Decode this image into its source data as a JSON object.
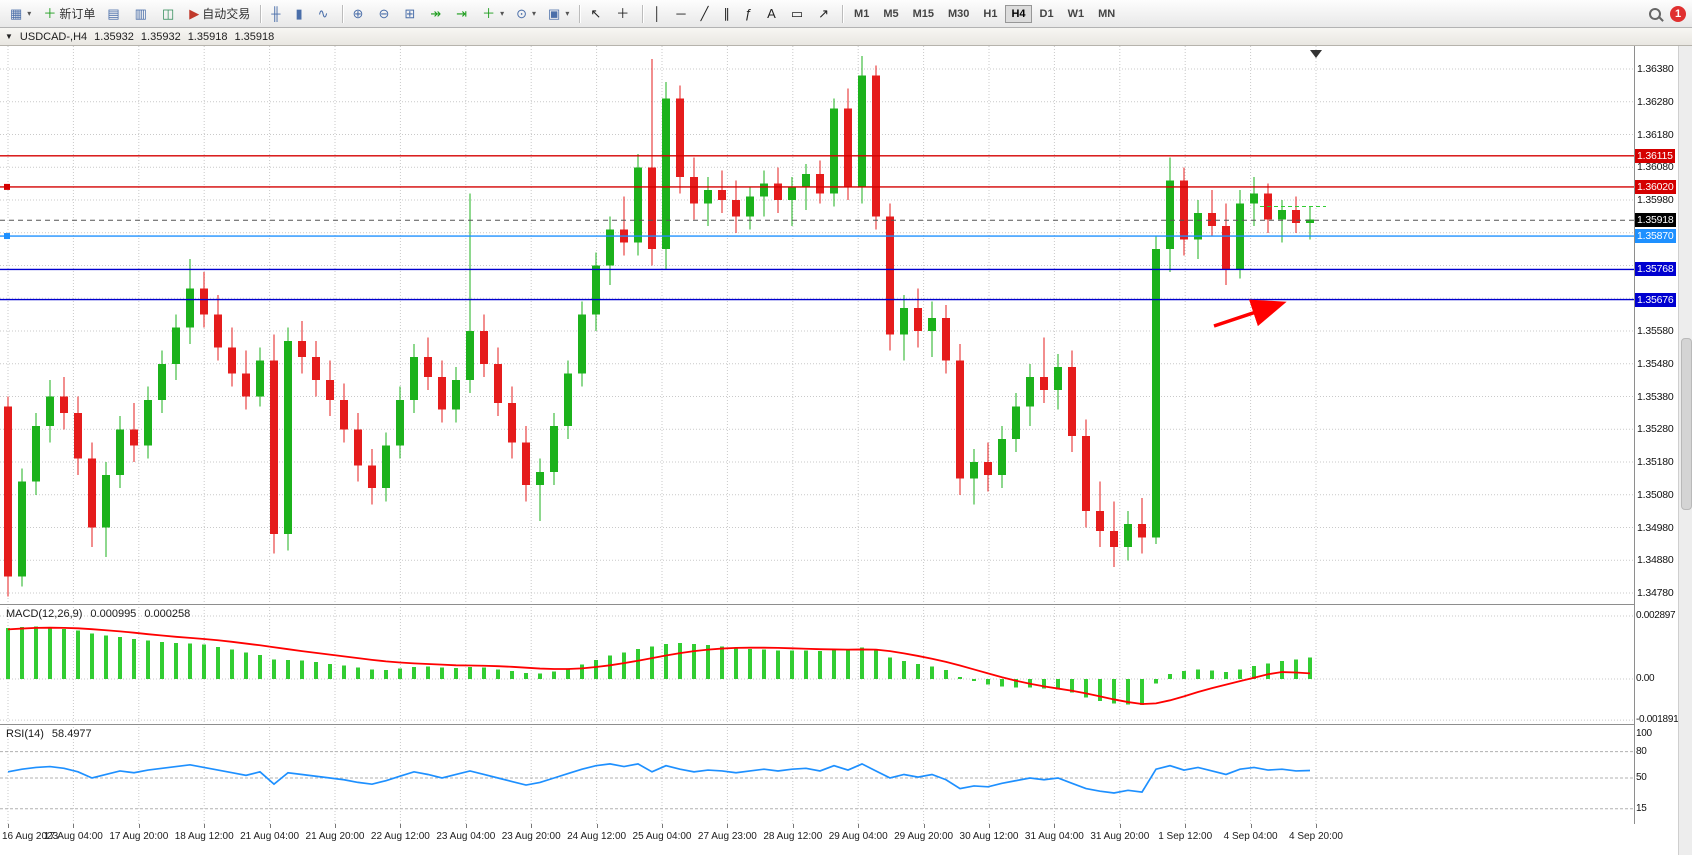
{
  "toolbar": {
    "caret_glyph": "▾",
    "notification_count": "1",
    "active_timeframe": "H4",
    "timeframes": [
      "M1",
      "M5",
      "M15",
      "M30",
      "H1",
      "H4",
      "D1",
      "W1",
      "MN"
    ],
    "items": [
      {
        "type": "icon",
        "name": "new-chart",
        "glyph": "▦",
        "caret": true
      },
      {
        "type": "button",
        "name": "new-order",
        "label": "新订单",
        "glyph": "＋",
        "color": "#1a9c1a"
      },
      {
        "type": "icon",
        "name": "charts-profile",
        "glyph": "▤"
      },
      {
        "type": "icon",
        "name": "market-watch",
        "glyph": "▥"
      },
      {
        "type": "icon",
        "name": "data-window",
        "glyph": "◫",
        "color": "#2e8b57"
      },
      {
        "type": "button",
        "name": "auto-trading",
        "label": "自动交易",
        "glyph": "▶",
        "color": "#c0392b"
      },
      {
        "type": "sep"
      },
      {
        "type": "icon",
        "name": "bar-chart-mode",
        "glyph": "╫"
      },
      {
        "type": "icon",
        "name": "candlestick-mode",
        "glyph": "▮"
      },
      {
        "type": "icon",
        "name": "line-chart-mode",
        "glyph": "∿"
      },
      {
        "type": "sep"
      },
      {
        "type": "icon",
        "name": "zoom-in",
        "glyph": "⊕"
      },
      {
        "type": "icon",
        "name": "zoom-out",
        "glyph": "⊖"
      },
      {
        "type": "icon",
        "name": "tile-windows",
        "glyph": "⊞"
      },
      {
        "type": "icon",
        "name": "auto-scroll",
        "glyph": "↠",
        "color": "#1a9c1a"
      },
      {
        "type": "icon",
        "name": "chart-shift",
        "glyph": "⇥",
        "color": "#1a9c1a"
      },
      {
        "type": "icon",
        "name": "indicators",
        "glyph": "＋",
        "color": "#1a9c1a",
        "caret": true
      },
      {
        "type": "icon",
        "name": "periods",
        "glyph": "⊙",
        "caret": true
      },
      {
        "type": "icon",
        "name": "templates",
        "glyph": "▣",
        "caret": true
      },
      {
        "type": "sep"
      },
      {
        "type": "icon",
        "name": "cursor",
        "glyph": "↖",
        "color": "#222222"
      },
      {
        "type": "icon",
        "name": "crosshair",
        "glyph": "＋",
        "color": "#222222"
      },
      {
        "type": "sep"
      },
      {
        "type": "icon",
        "name": "vertical-line",
        "glyph": "│",
        "color": "#222222"
      },
      {
        "type": "icon",
        "name": "horizontal-line",
        "glyph": "─",
        "color": "#222222"
      },
      {
        "type": "icon",
        "name": "trendline",
        "glyph": "╱",
        "color": "#222222"
      },
      {
        "type": "icon",
        "name": "equidistant-channel",
        "glyph": "∥",
        "color": "#222222"
      },
      {
        "type": "icon",
        "name": "fibonacci",
        "glyph": "ƒ",
        "color": "#222222"
      },
      {
        "type": "icon",
        "name": "text",
        "glyph": "A",
        "color": "#222222"
      },
      {
        "type": "icon",
        "name": "text-label",
        "glyph": "▭",
        "color": "#222222"
      },
      {
        "type": "icon",
        "name": "arrows",
        "glyph": "↗",
        "color": "#222222"
      },
      {
        "type": "sep"
      },
      {
        "type": "tf-group"
      }
    ]
  },
  "chart_window": {
    "caret": "▼",
    "symbol": "USDCAD-,H4",
    "open": "1.35932",
    "high": "1.35932",
    "low": "1.35918",
    "close": "1.35918"
  },
  "colors": {
    "bull": "#1cb21c",
    "bear": "#e51c1c",
    "grid": "#c9c9c9",
    "current_price_line": "#555555",
    "ask_marker": "#32cd32"
  },
  "chart_data": {
    "type": "candlestick",
    "symbol": "USDCAD",
    "timeframe": "H4",
    "price_axis": [
      "1.36380",
      "1.36280",
      "1.36180",
      "1.36080",
      "1.35980",
      "1.35880",
      "1.35780",
      "1.35680",
      "1.35580",
      "1.35480",
      "1.35380",
      "1.35280",
      "1.35180",
      "1.35080",
      "1.34980",
      "1.34880",
      "1.34780"
    ],
    "time_axis": [
      "16 Aug 2023",
      "17 Aug 04:00",
      "17 Aug 20:00",
      "18 Aug 12:00",
      "21 Aug 04:00",
      "21 Aug 20:00",
      "22 Aug 12:00",
      "23 Aug 04:00",
      "23 Aug 20:00",
      "24 Aug 12:00",
      "25 Aug 04:00",
      "27 Aug 23:00",
      "28 Aug 12:00",
      "29 Aug 04:00",
      "29 Aug 20:00",
      "30 Aug 12:00",
      "31 Aug 04:00",
      "31 Aug 20:00",
      "1 Sep 12:00",
      "4 Sep 04:00",
      "4 Sep 20:00"
    ],
    "candles": [
      [
        1.3535,
        1.3538,
        1.3477,
        1.3483
      ],
      [
        1.3483,
        1.3516,
        1.348,
        1.3512
      ],
      [
        1.3512,
        1.3533,
        1.3508,
        1.3529
      ],
      [
        1.3529,
        1.3543,
        1.3524,
        1.3538
      ],
      [
        1.3538,
        1.3544,
        1.3528,
        1.3533
      ],
      [
        1.3533,
        1.3538,
        1.3514,
        1.3519
      ],
      [
        1.3519,
        1.3524,
        1.3492,
        1.3498
      ],
      [
        1.3498,
        1.3518,
        1.3489,
        1.3514
      ],
      [
        1.3514,
        1.3532,
        1.351,
        1.3528
      ],
      [
        1.3528,
        1.3536,
        1.3518,
        1.3523
      ],
      [
        1.3523,
        1.3541,
        1.3519,
        1.3537
      ],
      [
        1.3537,
        1.3552,
        1.3533,
        1.3548
      ],
      [
        1.3548,
        1.3563,
        1.3543,
        1.3559
      ],
      [
        1.3559,
        1.358,
        1.3554,
        1.3571
      ],
      [
        1.3571,
        1.3576,
        1.3559,
        1.3563
      ],
      [
        1.3563,
        1.3569,
        1.3549,
        1.3553
      ],
      [
        1.3553,
        1.3559,
        1.3541,
        1.3545
      ],
      [
        1.3545,
        1.3552,
        1.3534,
        1.3538
      ],
      [
        1.3538,
        1.3553,
        1.3535,
        1.3549
      ],
      [
        1.3549,
        1.3557,
        1.349,
        1.3496
      ],
      [
        1.3496,
        1.3559,
        1.3491,
        1.3555
      ],
      [
        1.3555,
        1.3561,
        1.3545,
        1.355
      ],
      [
        1.355,
        1.3555,
        1.3538,
        1.3543
      ],
      [
        1.3543,
        1.3549,
        1.3532,
        1.3537
      ],
      [
        1.3537,
        1.3542,
        1.3524,
        1.3528
      ],
      [
        1.3528,
        1.3533,
        1.3512,
        1.3517
      ],
      [
        1.3517,
        1.3522,
        1.3505,
        1.351
      ],
      [
        1.351,
        1.3527,
        1.3506,
        1.3523
      ],
      [
        1.3523,
        1.3541,
        1.3519,
        1.3537
      ],
      [
        1.3537,
        1.3554,
        1.3533,
        1.355
      ],
      [
        1.355,
        1.3556,
        1.354,
        1.3544
      ],
      [
        1.3544,
        1.3549,
        1.353,
        1.3534
      ],
      [
        1.3534,
        1.3547,
        1.353,
        1.3543
      ],
      [
        1.3543,
        1.36,
        1.3539,
        1.3558
      ],
      [
        1.3558,
        1.3563,
        1.3544,
        1.3548
      ],
      [
        1.3548,
        1.3553,
        1.3532,
        1.3536
      ],
      [
        1.3536,
        1.3541,
        1.3519,
        1.3524
      ],
      [
        1.3524,
        1.3529,
        1.3506,
        1.3511
      ],
      [
        1.3511,
        1.3519,
        1.35,
        1.3515
      ],
      [
        1.3515,
        1.3533,
        1.3511,
        1.3529
      ],
      [
        1.3529,
        1.3549,
        1.3525,
        1.3545
      ],
      [
        1.3545,
        1.3567,
        1.3541,
        1.3563
      ],
      [
        1.3563,
        1.3582,
        1.3558,
        1.3578
      ],
      [
        1.3578,
        1.3593,
        1.3572,
        1.3589
      ],
      [
        1.3589,
        1.3599,
        1.3581,
        1.3585
      ],
      [
        1.3585,
        1.3612,
        1.3581,
        1.3608
      ],
      [
        1.3608,
        1.3641,
        1.3578,
        1.3583
      ],
      [
        1.3583,
        1.3634,
        1.3577,
        1.3629
      ],
      [
        1.3629,
        1.3633,
        1.36,
        1.3605
      ],
      [
        1.3605,
        1.3611,
        1.3592,
        1.3597
      ],
      [
        1.3597,
        1.3605,
        1.359,
        1.3601
      ],
      [
        1.3601,
        1.3607,
        1.3594,
        1.3598
      ],
      [
        1.3598,
        1.3604,
        1.3588,
        1.3593
      ],
      [
        1.3593,
        1.3602,
        1.3589,
        1.3599
      ],
      [
        1.3599,
        1.3607,
        1.3593,
        1.3603
      ],
      [
        1.3603,
        1.3608,
        1.3594,
        1.3598
      ],
      [
        1.3598,
        1.3605,
        1.359,
        1.3602
      ],
      [
        1.3602,
        1.3609,
        1.3595,
        1.3606
      ],
      [
        1.3606,
        1.361,
        1.3597,
        1.36
      ],
      [
        1.36,
        1.3629,
        1.3596,
        1.3626
      ],
      [
        1.3626,
        1.3632,
        1.3598,
        1.3602
      ],
      [
        1.3602,
        1.3642,
        1.3597,
        1.3636
      ],
      [
        1.3636,
        1.3639,
        1.3589,
        1.3593
      ],
      [
        1.3593,
        1.3597,
        1.3552,
        1.3557
      ],
      [
        1.3557,
        1.3569,
        1.3549,
        1.3565
      ],
      [
        1.3565,
        1.3571,
        1.3553,
        1.3558
      ],
      [
        1.3558,
        1.3567,
        1.355,
        1.3562
      ],
      [
        1.3562,
        1.3566,
        1.3545,
        1.3549
      ],
      [
        1.3549,
        1.3554,
        1.3508,
        1.3513
      ],
      [
        1.3513,
        1.3522,
        1.3505,
        1.3518
      ],
      [
        1.3518,
        1.3524,
        1.3509,
        1.3514
      ],
      [
        1.3514,
        1.3529,
        1.351,
        1.3525
      ],
      [
        1.3525,
        1.3539,
        1.3521,
        1.3535
      ],
      [
        1.3535,
        1.3548,
        1.3529,
        1.3544
      ],
      [
        1.3544,
        1.3556,
        1.3536,
        1.354
      ],
      [
        1.354,
        1.3551,
        1.3534,
        1.3547
      ],
      [
        1.3547,
        1.3552,
        1.3521,
        1.3526
      ],
      [
        1.3526,
        1.3531,
        1.3498,
        1.3503
      ],
      [
        1.3503,
        1.3512,
        1.3492,
        1.3497
      ],
      [
        1.3497,
        1.3506,
        1.3486,
        1.3492
      ],
      [
        1.3492,
        1.3503,
        1.3488,
        1.3499
      ],
      [
        1.3499,
        1.3507,
        1.349,
        1.3495
      ],
      [
        1.3495,
        1.3587,
        1.3493,
        1.3583
      ],
      [
        1.3583,
        1.3611,
        1.3576,
        1.3604
      ],
      [
        1.3604,
        1.3608,
        1.3581,
        1.3586
      ],
      [
        1.3586,
        1.3598,
        1.358,
        1.3594
      ],
      [
        1.3594,
        1.3601,
        1.3587,
        1.359
      ],
      [
        1.359,
        1.3597,
        1.3572,
        1.3577
      ],
      [
        1.3577,
        1.3601,
        1.3574,
        1.3597
      ],
      [
        1.3597,
        1.3605,
        1.359,
        1.36
      ],
      [
        1.36,
        1.3603,
        1.3588,
        1.3592
      ],
      [
        1.3592,
        1.3598,
        1.3585,
        1.3595
      ],
      [
        1.3595,
        1.3599,
        1.3588,
        1.3591
      ],
      [
        1.3591,
        1.3596,
        1.3586,
        1.3592
      ]
    ],
    "hlines": [
      {
        "price": 1.36115,
        "label": "1.36115",
        "color": "#d40000"
      },
      {
        "price": 1.3602,
        "label": "1.36020",
        "color": "#d40000",
        "handles": true
      },
      {
        "price": 1.3587,
        "label": "1.35870",
        "color": "#1e90ff",
        "handles": true
      },
      {
        "price": 1.35768,
        "label": "1.35768",
        "color": "#0000d0"
      },
      {
        "price": 1.35676,
        "label": "1.35676",
        "color": "#0000d0"
      }
    ],
    "current_price": {
      "value": 1.35918,
      "label": "1.35918",
      "badge_color": "#000000"
    },
    "arrow_annotation": {
      "color": "#ff0000"
    },
    "macd": {
      "label": "MACD(12,26,9)",
      "value_main": "0.000995",
      "value_signal": "0.000258",
      "axis_labels": [
        "0.002897",
        "0.00",
        "-0.001891"
      ],
      "axis_values": [
        0.002897,
        0,
        -0.001891
      ],
      "histogram_color": "#32cd32",
      "signal_color": "#ff0000",
      "histogram": [
        0.00235,
        0.0024,
        0.00242,
        0.00238,
        0.0023,
        0.00222,
        0.0021,
        0.002,
        0.00192,
        0.00183,
        0.00176,
        0.0017,
        0.00166,
        0.00164,
        0.00158,
        0.00148,
        0.00136,
        0.00122,
        0.0011,
        0.0009,
        0.00088,
        0.00084,
        0.00078,
        0.0007,
        0.00062,
        0.00052,
        0.00044,
        0.00042,
        0.00048,
        0.00056,
        0.00058,
        0.00052,
        0.0005,
        0.00056,
        0.00052,
        0.00044,
        0.00036,
        0.00028,
        0.00026,
        0.00034,
        0.00048,
        0.00066,
        0.00088,
        0.00108,
        0.00122,
        0.00138,
        0.0015,
        0.00162,
        0.00166,
        0.00162,
        0.00156,
        0.0015,
        0.00142,
        0.00138,
        0.00136,
        0.00132,
        0.0013,
        0.00132,
        0.00128,
        0.00136,
        0.0013,
        0.00144,
        0.0013,
        0.001,
        0.00082,
        0.00068,
        0.00058,
        0.00042,
        0.0001,
        -0.0001,
        -0.00026,
        -0.00034,
        -0.00038,
        -0.0004,
        -0.00044,
        -0.00048,
        -0.00062,
        -0.00084,
        -0.001,
        -0.00112,
        -0.00118,
        -0.0012,
        -0.0002,
        0.00024,
        0.00036,
        0.00044,
        0.0004,
        0.00032,
        0.00044,
        0.0006,
        0.00072,
        0.00082,
        0.0009,
        0.000995
      ],
      "signal": [
        0.00228,
        0.00232,
        0.00235,
        0.00236,
        0.00235,
        0.00233,
        0.00229,
        0.00224,
        0.00219,
        0.00213,
        0.00206,
        0.002,
        0.00194,
        0.00189,
        0.00184,
        0.00178,
        0.00171,
        0.00163,
        0.00155,
        0.00146,
        0.00137,
        0.00128,
        0.0012,
        0.00112,
        0.00104,
        0.00096,
        0.00088,
        0.00081,
        0.00076,
        0.00072,
        0.00069,
        0.00066,
        0.00063,
        0.00062,
        0.00061,
        0.00059,
        0.00056,
        0.00052,
        0.00048,
        0.00046,
        0.00046,
        0.00049,
        0.00055,
        0.00063,
        0.00073,
        0.00084,
        0.00096,
        0.00108,
        0.00119,
        0.00128,
        0.00135,
        0.0014,
        0.00143,
        0.00144,
        0.00144,
        0.00143,
        0.00141,
        0.00139,
        0.00137,
        0.00136,
        0.00135,
        0.00136,
        0.00135,
        0.00128,
        0.00118,
        0.00106,
        0.00093,
        0.00079,
        0.00062,
        0.00044,
        0.00026,
        8e-05,
        -8e-05,
        -0.00022,
        -0.00034,
        -0.00044,
        -0.00054,
        -0.00066,
        -0.0008,
        -0.00094,
        -0.00106,
        -0.00115,
        -0.00112,
        -0.00098,
        -0.0008,
        -0.0006,
        -0.00042,
        -0.00026,
        -0.0001,
        6e-05,
        0.00022,
        0.00032,
        0.0003,
        0.000258
      ]
    },
    "rsi": {
      "label": "RSI(14)",
      "value": "58.4977",
      "axis_labels": [
        "100",
        "80",
        "50",
        "15"
      ],
      "axis_values": [
        100,
        80,
        50,
        15
      ],
      "levels": [
        80,
        50,
        15
      ],
      "line_color": "#1e90ff",
      "values": [
        57,
        60,
        62,
        63,
        61,
        57,
        50,
        54,
        58,
        56,
        59,
        61,
        63,
        65,
        62,
        59,
        56,
        53,
        57,
        43,
        56,
        54,
        52,
        50,
        48,
        45,
        43,
        47,
        52,
        57,
        54,
        50,
        54,
        58,
        54,
        50,
        46,
        42,
        45,
        50,
        55,
        60,
        64,
        66,
        63,
        66,
        57,
        64,
        60,
        57,
        59,
        58,
        56,
        58,
        60,
        58,
        60,
        61,
        58,
        64,
        59,
        66,
        58,
        50,
        54,
        51,
        54,
        48,
        38,
        41,
        40,
        44,
        47,
        50,
        48,
        50,
        44,
        38,
        35,
        33,
        36,
        34,
        60,
        64,
        59,
        62,
        58,
        54,
        60,
        62,
        59,
        60,
        58,
        58.5
      ]
    }
  }
}
